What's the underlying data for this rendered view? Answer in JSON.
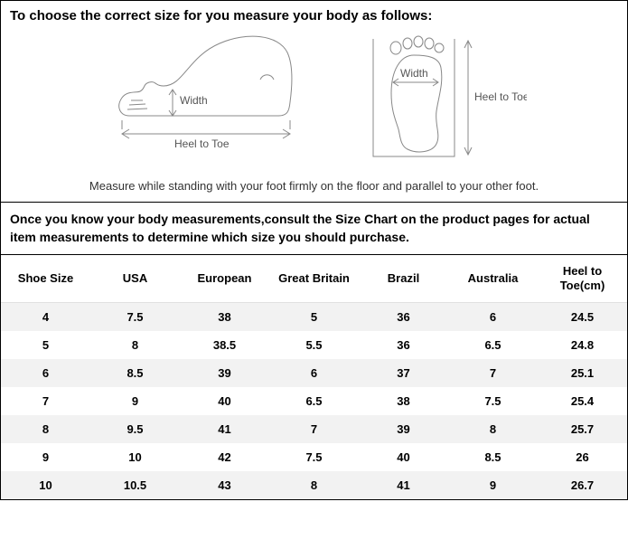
{
  "heading": "To choose the correct size for you measure your body as follows:",
  "diagram": {
    "side_view": {
      "width_label": "Width",
      "heel_toe_label": "Heel to Toe"
    },
    "top_view": {
      "width_label": "Width",
      "heel_toe_label": "Heel to Toe"
    },
    "stroke_color": "#888888",
    "label_color": "#555555"
  },
  "caption": "Measure while standing with your foot firmly on the floor and parallel to your other foot.",
  "instruction": "Once you know your body measurements,consult the Size Chart on the product pages for actual item measurements to determine which size you should purchase.",
  "table": {
    "columns": [
      "Shoe Size",
      "USA",
      "European",
      "Great Britain",
      "Brazil",
      "Australia",
      "Heel to Toe(cm)"
    ],
    "rows": [
      [
        "4",
        "7.5",
        "38",
        "5",
        "36",
        "6",
        "24.5"
      ],
      [
        "5",
        "8",
        "38.5",
        "5.5",
        "36",
        "6.5",
        "24.8"
      ],
      [
        "6",
        "8.5",
        "39",
        "6",
        "37",
        "7",
        "25.1"
      ],
      [
        "7",
        "9",
        "40",
        "6.5",
        "38",
        "7.5",
        "25.4"
      ],
      [
        "8",
        "9.5",
        "41",
        "7",
        "39",
        "8",
        "25.7"
      ],
      [
        "9",
        "10",
        "42",
        "7.5",
        "40",
        "8.5",
        "26"
      ],
      [
        "10",
        "10.5",
        "43",
        "8",
        "41",
        "9",
        "26.7"
      ]
    ],
    "odd_row_bg": "#f2f2f2",
    "even_row_bg": "#ffffff",
    "header_fontsize": 13,
    "cell_fontsize": 13
  }
}
